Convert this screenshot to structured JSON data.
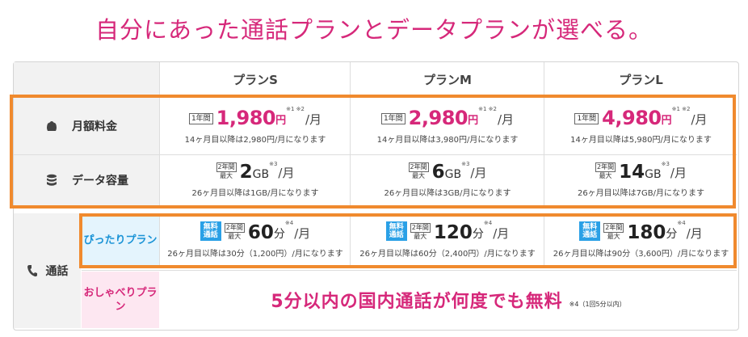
{
  "headline": "自分にあった通話プランとデータプランが選べる。",
  "plans": [
    {
      "name": "プランS",
      "price": "1,980",
      "price_after": "14ヶ月目以降は2,980円/月になります",
      "gb": "2",
      "gb_after": "26ヶ月目以降は1GB/月になります",
      "minutes": "60",
      "minutes_after": "26ヶ月目以降は30分（1,200円）/月になります"
    },
    {
      "name": "プランM",
      "price": "2,980",
      "price_after": "14ヶ月目以降は3,980円/月になります",
      "gb": "6",
      "gb_after": "26ヶ月目以降は3GB/月になります",
      "minutes": "120",
      "minutes_after": "26ヶ月目以降は60分（2,400円）/月になります"
    },
    {
      "name": "プランL",
      "price": "4,980",
      "price_after": "14ヶ月目以降は5,980円/月になります",
      "gb": "14",
      "gb_after": "26ヶ月目以降は7GB/月になります",
      "minutes": "180",
      "minutes_after": "26ヶ月目以降は90分（3,600円）/月になります"
    }
  ],
  "labels": {
    "monthly_fee": "月額料金",
    "data_capacity": "データ容量",
    "call": "通話",
    "pittari": "ぴったりプラン",
    "oshaberi": "おしゃべりプラン",
    "first_year": "1年間",
    "two_years": "2年間",
    "max": "最大",
    "yen": "円",
    "per_month": "/月",
    "gb_unit": "GB",
    "min_unit": "分",
    "free_call": "無料通話",
    "note_price": "※1 ※2",
    "note_gb": "※3",
    "note_min": "※4"
  },
  "oshaberi_text": "5分以内の国内通話が何度でも無料",
  "oshaberi_note": "※4（1回5分以内）",
  "icons": {
    "wallet": "wallet-icon",
    "database": "database-icon",
    "phone": "phone-icon"
  },
  "colors": {
    "accent": "#d6287a",
    "highlight": "#f08a2e",
    "blue": "#2aa0e6"
  }
}
